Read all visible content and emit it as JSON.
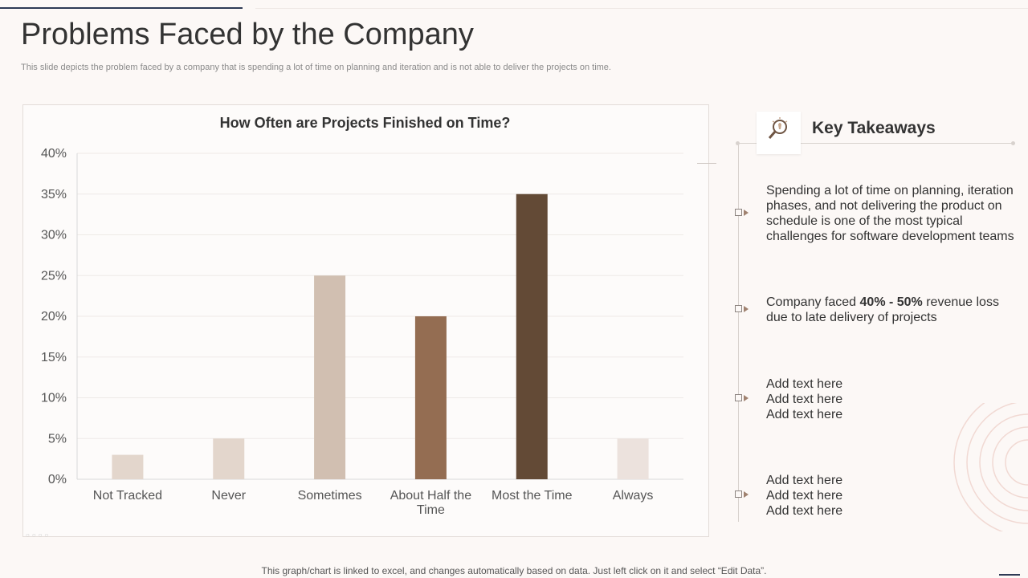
{
  "title": "Problems Faced by the Company",
  "subtitle": "This slide depicts the problem faced by a company that is spending a lot of time on planning and iteration and is not able to  deliver the projects on time.",
  "chart_data": {
    "type": "bar",
    "title": "How Often are Projects Finished on Time?",
    "categories": [
      "Not Tracked",
      "Never",
      "Sometimes",
      "About Half the Time",
      "Most the Time",
      "Always"
    ],
    "category_lines": [
      [
        "Not Tracked"
      ],
      [
        "Never"
      ],
      [
        "Sometimes"
      ],
      [
        "About Half the",
        "Time"
      ],
      [
        "Most the Time"
      ],
      [
        "Always"
      ]
    ],
    "values": [
      0.03,
      0.05,
      0.25,
      0.2,
      0.35,
      0.05
    ],
    "yticks": [
      "0%",
      "5%",
      "10%",
      "15%",
      "20%",
      "25%",
      "30%",
      "35%",
      "40%"
    ],
    "ylim": [
      0,
      0.4
    ],
    "colors": [
      "#e3d6cc",
      "#e3d6cc",
      "#d1bfb1",
      "#946d52",
      "#634a36",
      "#ece2dd"
    ],
    "grid": true
  },
  "takeaways": {
    "title": "Key Takeaways",
    "item1": "Spending a lot of time on planning, iteration phases, and not delivering the product on schedule is one of the most typical challenges for software development teams",
    "item2_pre": "Company faced ",
    "item2_bold": "40% - 50%",
    "item2_post": " revenue loss due to late delivery of projects",
    "item3": [
      "Add text here",
      "Add text here",
      "Add text here"
    ],
    "item4": [
      "Add text here",
      "Add text here",
      "Add text here"
    ]
  },
  "footer": "This graph/chart is linked to excel,  and changes automatically based on data. Just left click on it and select “Edit Data”."
}
